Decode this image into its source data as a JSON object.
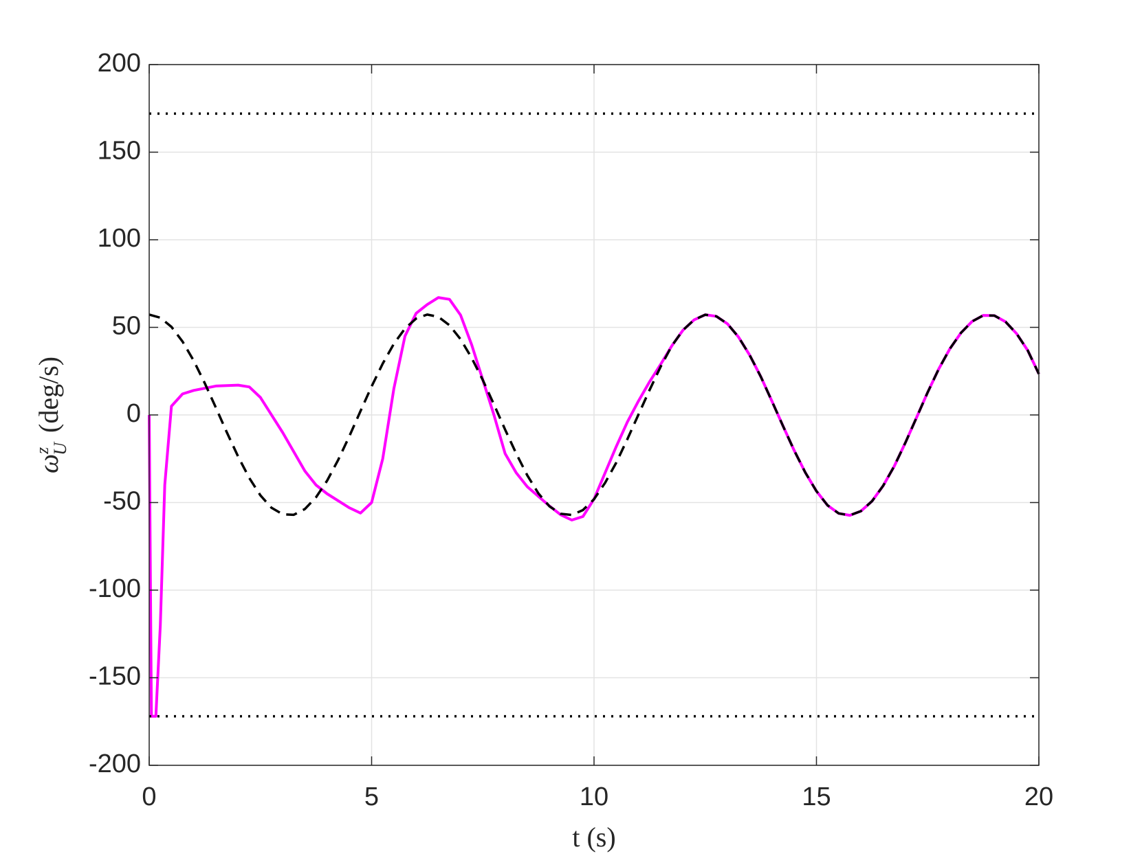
{
  "chart_data": {
    "type": "line",
    "xlabel": "t (s)",
    "ylabel": {
      "symbol": "ω",
      "sub": "U",
      "sup": "z",
      "unit": "(deg/s)"
    },
    "xlim": [
      0,
      20
    ],
    "xticks": [
      0,
      5,
      10,
      15,
      20
    ],
    "ylim": [
      -200,
      200
    ],
    "yticks": [
      -200,
      -150,
      -100,
      -50,
      0,
      50,
      100,
      150,
      200
    ],
    "grid": true,
    "series": [
      {
        "color": "#ff00ff",
        "style": "solid",
        "x": [
          0,
          0.05,
          0.15,
          0.25,
          0.35,
          0.5,
          0.75,
          1,
          1.5,
          2,
          2.25,
          2.5,
          3,
          3.5,
          3.75,
          4,
          4.5,
          4.75,
          5,
          5.25,
          5.5,
          5.75,
          6,
          6.25,
          6.5,
          6.75,
          7,
          7.25,
          7.5,
          7.75,
          8,
          8.25,
          8.5,
          9,
          9.25,
          9.5,
          9.75,
          10,
          10.25,
          10.5,
          10.75,
          11,
          11.25,
          11.5,
          11.75,
          12,
          12.25,
          12.5,
          12.75,
          13,
          13.25,
          13.5,
          13.75,
          14,
          14.25,
          14.5,
          14.75,
          15,
          15.25,
          15.5,
          15.75,
          16,
          16.25,
          16.5,
          16.75,
          17,
          17.25,
          17.5,
          17.75,
          18,
          18.25,
          18.5,
          18.75,
          19,
          19.25,
          19.5,
          19.75,
          20
        ],
        "values": [
          0,
          -172,
          -172,
          -120,
          -40,
          5,
          12,
          14,
          16.5,
          17,
          16,
          10,
          -10,
          -32,
          -40,
          -45,
          -53,
          -56,
          -50,
          -25,
          15,
          45,
          58,
          63,
          67,
          66,
          57,
          40,
          20,
          0,
          -22,
          -33,
          -41,
          -52,
          -57,
          -60,
          -58,
          -48,
          -33,
          -18,
          -4,
          8,
          19,
          29,
          39.5,
          48.4,
          54.3,
          57.2,
          56.3,
          52.0,
          44.4,
          34.1,
          21.8,
          7.8,
          -6.4,
          -20.3,
          -32.9,
          -43.5,
          -51.6,
          -56.2,
          -57.3,
          -54.9,
          -49.2,
          -40.4,
          -29.2,
          -15.8,
          -1.5,
          12.9,
          26.3,
          37.8,
          46.9,
          53.4,
          56.8,
          56.7,
          53.2,
          46.4,
          36.8,
          23.4
        ]
      },
      {
        "color": "#000000",
        "style": "dashed",
        "x": [
          0,
          0.25,
          0.5,
          0.75,
          1,
          1.25,
          1.5,
          1.75,
          2,
          2.25,
          2.5,
          2.75,
          3,
          3.25,
          3.5,
          3.75,
          4,
          4.25,
          4.5,
          4.75,
          5,
          5.25,
          5.5,
          5.75,
          6,
          6.25,
          6.5,
          6.75,
          7,
          7.25,
          7.5,
          7.75,
          8,
          8.25,
          8.5,
          8.75,
          9,
          9.25,
          9.5,
          9.75,
          10,
          10.25,
          10.5,
          10.75,
          11,
          11.25,
          11.5,
          11.75,
          12,
          12.25,
          12.5,
          12.75,
          13,
          13.25,
          13.5,
          13.75,
          14,
          14.25,
          14.5,
          14.75,
          15,
          15.25,
          15.5,
          15.75,
          16,
          16.25,
          16.5,
          16.75,
          17,
          17.25,
          17.5,
          17.75,
          18,
          18.25,
          18.5,
          18.75,
          19,
          19.25,
          19.5,
          19.75,
          20
        ],
        "values": [
          57.3,
          55.5,
          50.3,
          41.9,
          31.0,
          18.1,
          4.1,
          -10.2,
          -23.8,
          -36.0,
          -45.9,
          -53.0,
          -56.7,
          -57.0,
          -53.7,
          -47.0,
          -37.5,
          -25.6,
          -12.1,
          2.2,
          16.3,
          29.3,
          40.6,
          49.3,
          55.0,
          57.3,
          56.0,
          51.2,
          43.2,
          32.5,
          19.9,
          6.0,
          -8.3,
          -22.0,
          -34.5,
          -44.8,
          -52.2,
          -56.4,
          -57.1,
          -54.3,
          -48.1,
          -38.7,
          -27.2,
          -13.8,
          0.3,
          14.3,
          27.7,
          39.5,
          48.4,
          54.3,
          57.2,
          56.3,
          52.0,
          44.4,
          34.1,
          21.8,
          7.8,
          -6.4,
          -20.3,
          -32.9,
          -43.5,
          -51.6,
          -56.2,
          -57.3,
          -54.9,
          -49.2,
          -40.4,
          -29.2,
          -15.8,
          -1.5,
          12.9,
          26.3,
          37.8,
          46.9,
          53.4,
          56.8,
          56.7,
          53.2,
          46.4,
          36.8,
          23.4
        ]
      },
      {
        "color": "#000000",
        "style": "dotted",
        "x": [
          0,
          20
        ],
        "values": [
          172,
          172
        ]
      },
      {
        "color": "#000000",
        "style": "dotted",
        "x": [
          0,
          20
        ],
        "values": [
          -172,
          -172
        ]
      }
    ]
  }
}
